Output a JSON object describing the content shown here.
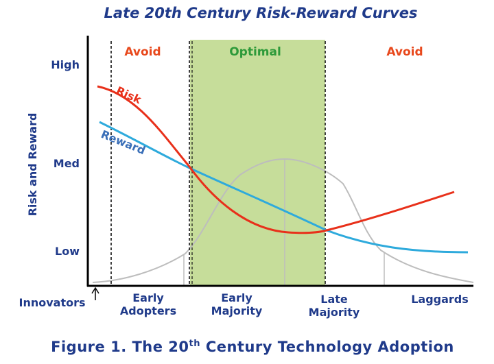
{
  "chart_data": {
    "type": "line",
    "title": "Late 20th Century Risk-Reward Curves",
    "ylabel": "Risk and Reward",
    "y_ticks": [
      "High",
      "Med",
      "Low"
    ],
    "x_categories": [
      {
        "id": "innovators",
        "lines": [
          "Innovators"
        ]
      },
      {
        "id": "early-adopters",
        "lines": [
          "Early",
          "Adopters"
        ]
      },
      {
        "id": "early-majority",
        "lines": [
          "Early",
          "Majority"
        ]
      },
      {
        "id": "late-majority",
        "lines": [
          "Late",
          "Majority"
        ]
      },
      {
        "id": "laggards",
        "lines": [
          "Laggards"
        ]
      }
    ],
    "zones": [
      {
        "label": "Avoid",
        "color": "#e8491d"
      },
      {
        "label": "Optimal",
        "color": "#2e9a3a",
        "fill": "#c6dd9a"
      },
      {
        "label": "Avoid",
        "color": "#e8491d"
      }
    ],
    "series": [
      {
        "name": "Risk",
        "color": "#e8301a"
      },
      {
        "name": "Reward",
        "color": "#2eaadc",
        "label_color": "#3a6fb8"
      }
    ],
    "adoption_curve_color": "#bdbdbd",
    "caption": {
      "prefix": "Figure 1.  The 20",
      "sup": "th",
      "suffix": " Century Technology Adoption"
    }
  }
}
